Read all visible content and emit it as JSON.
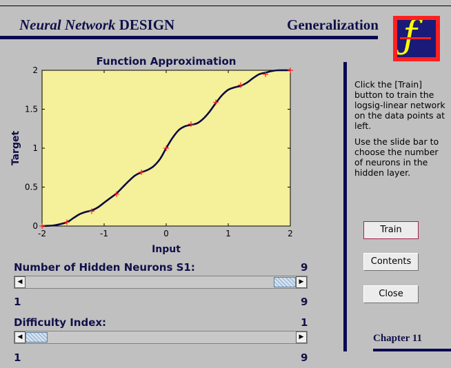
{
  "header": {
    "title_italic": "Neural Network",
    "title_bold": "DESIGN",
    "chapter_title": "Generalization"
  },
  "logo": {
    "icon": "nnd-logo-icon",
    "colors": {
      "frame": "#ff2020",
      "field": "#1a1a78",
      "glyph": "#ffff00"
    }
  },
  "info": {
    "p1": "Click the [Train] button to train the logsig-linear network on the data points at left.",
    "p2": "Use the slide bar to choose the number of neurons in the hidden layer."
  },
  "buttons": {
    "train": "Train",
    "contents": "Contents",
    "close": "Close"
  },
  "footer": {
    "chapter": "Chapter 11"
  },
  "sliders": {
    "neurons": {
      "label": "Number of Hidden Neurons S1:",
      "value": "9",
      "min": "1",
      "max": "9",
      "position": 1.0
    },
    "difficulty": {
      "label": "Difficulty Index:",
      "value": "1",
      "min": "1",
      "max": "9",
      "position": 0.0
    }
  },
  "chart_data": {
    "type": "line",
    "title": "Function Approximation",
    "xlabel": "Input",
    "ylabel": "Target",
    "xlim": [
      -2,
      2
    ],
    "ylim": [
      0,
      2
    ],
    "xticks": [
      -2,
      -1,
      0,
      1,
      2
    ],
    "yticks": [
      0,
      0.5,
      1,
      1.5,
      2
    ],
    "xtick_labels": [
      "-2",
      "-1",
      "0",
      "1",
      "2"
    ],
    "ytick_labels": [
      "0",
      "0.5",
      "1",
      "1.5",
      "2"
    ],
    "background": "#f5f09a",
    "series": [
      {
        "role": "network-response",
        "style": "line",
        "color": "#0a0a40",
        "x": [
          -2,
          -1.8,
          -1.6,
          -1.5,
          -1.4,
          -1.3,
          -1.2,
          -1.1,
          -1.0,
          -0.9,
          -0.8,
          -0.7,
          -0.6,
          -0.5,
          -0.4,
          -0.3,
          -0.2,
          -0.1,
          0.0,
          0.1,
          0.2,
          0.3,
          0.4,
          0.5,
          0.6,
          0.7,
          0.8,
          0.9,
          1.0,
          1.1,
          1.2,
          1.3,
          1.4,
          1.5,
          1.6,
          1.7,
          1.8,
          2.0
        ],
        "y": [
          0.0,
          0.01,
          0.05,
          0.1,
          0.15,
          0.18,
          0.2,
          0.24,
          0.3,
          0.36,
          0.42,
          0.5,
          0.58,
          0.65,
          0.69,
          0.72,
          0.77,
          0.86,
          1.0,
          1.13,
          1.23,
          1.28,
          1.3,
          1.32,
          1.38,
          1.47,
          1.58,
          1.68,
          1.75,
          1.78,
          1.8,
          1.84,
          1.9,
          1.95,
          1.97,
          1.99,
          2.0,
          2.0
        ]
      },
      {
        "role": "data-points",
        "style": "plus",
        "color": "#ff2020",
        "x": [
          -2,
          -1.6,
          -1.2,
          -0.8,
          -0.4,
          0.0,
          0.4,
          0.8,
          1.2,
          1.6,
          2.0
        ],
        "y": [
          0.0,
          0.05,
          0.19,
          0.41,
          0.69,
          1.0,
          1.31,
          1.59,
          1.81,
          1.95,
          2.0
        ]
      }
    ],
    "grid": false,
    "legend": "none"
  }
}
